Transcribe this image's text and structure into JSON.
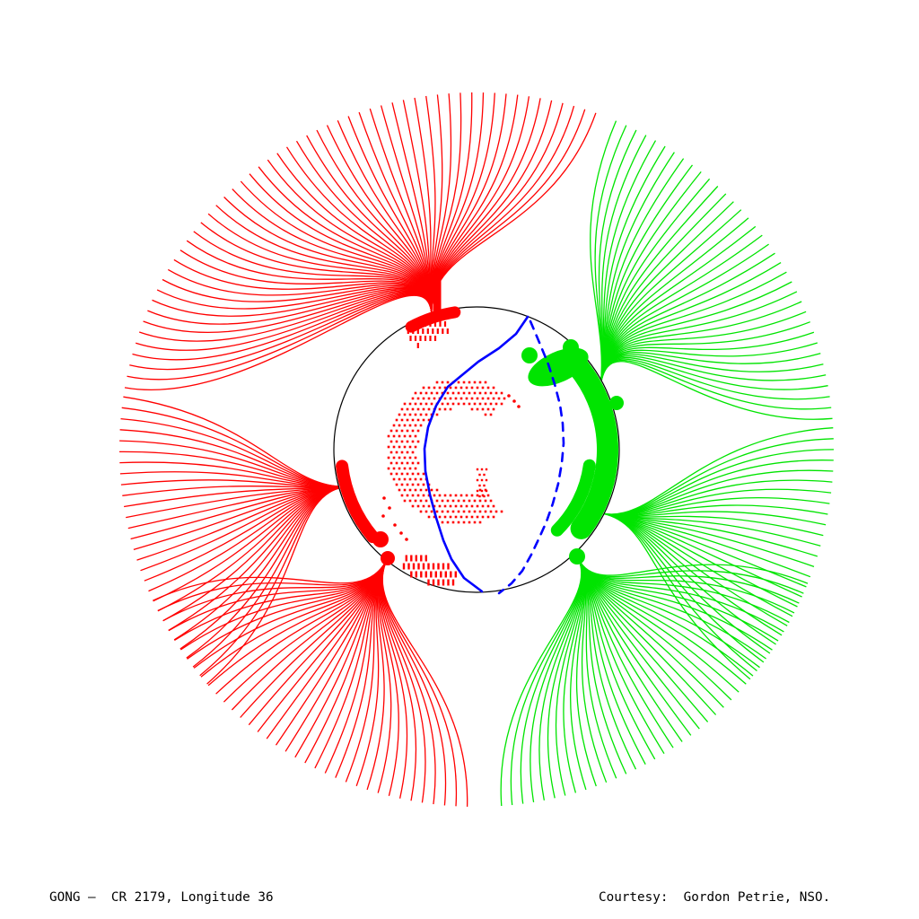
{
  "footer": {
    "left": "GONG —  CR 2179, Longitude 36",
    "right": "Courtesy:  Gordon Petrie, NSO."
  },
  "colors": {
    "background": "#ffffff",
    "negative": "#ff0000",
    "positive": "#00e400",
    "neutral": "#0000ff",
    "disk_outline": "#000000",
    "text": "#000000"
  },
  "chart_data": {
    "type": "field-line-plot",
    "title": "GONG —  CR 2179, Longitude 36",
    "credit": "Courtesy:  Gordon Petrie, NSO.",
    "legend": "grid off, no axes; red = negative-polarity open field lines, green = positive-polarity open field lines, blue = polarity-inversion (neutral) line, solid on near side and dashed on far side",
    "disk": {
      "cx": 531,
      "cy": 501,
      "r": 159
    },
    "source_surface_r": 398,
    "curve_c2_frac": 0.62,
    "line_width": 1.3,
    "series": [
      {
        "name": "negative polarity field lines",
        "color_key": "negative",
        "bundles": [
          "negative-top",
          "negative-left",
          "negative-bottom"
        ]
      },
      {
        "name": "positive polarity field lines",
        "color_key": "positive",
        "bundles": [
          "positive-top",
          "positive-mid",
          "positive-bottom"
        ]
      }
    ],
    "bundles": [
      {
        "id": "negative-top",
        "polarity": "negative",
        "foot": [
          481,
          351
        ],
        "dir_deg": 93,
        "c1_len": 85,
        "end_a0": 70.5,
        "end_a1": 170,
        "count": 55
      },
      {
        "id": "negative-left",
        "polarity": "negative",
        "foot": [
          389,
          542
        ],
        "dir_deg": 184,
        "c1_len": 70,
        "end_a0": 171.5,
        "end_a1": 221,
        "count": 29
      },
      {
        "id": "negative-bottom",
        "polarity": "negative",
        "foot": [
          432,
          622
        ],
        "dir_deg": 243,
        "c1_len": 75,
        "end_a0": 205,
        "end_a1": 268.5,
        "count": 36
      },
      {
        "id": "positive-top",
        "polarity": "positive",
        "foot": [
          669,
          431
        ],
        "dir_deg": 83,
        "c1_len": 85,
        "end_a0": 5,
        "end_a1": 67,
        "count": 36
      },
      {
        "id": "positive-mid",
        "polarity": "positive",
        "foot": [
          671,
          572
        ],
        "dir_deg": -12,
        "c1_len": 60,
        "end_a0": -40,
        "end_a1": 3.5,
        "count": 26
      },
      {
        "id": "positive-bottom",
        "polarity": "positive",
        "foot": [
          644,
          622
        ],
        "dir_deg": -63,
        "c1_len": 60,
        "end_a0": -86,
        "end_a1": -22,
        "count": 38
      }
    ],
    "neutral_line_front": {
      "style": "solid",
      "width": 2.6,
      "points": [
        [
          588,
          353
        ],
        [
          575,
          372
        ],
        [
          556,
          388
        ],
        [
          533,
          403
        ],
        [
          516,
          417
        ],
        [
          499,
          431
        ],
        [
          486,
          452
        ],
        [
          477,
          476
        ],
        [
          473,
          500
        ],
        [
          474,
          525
        ],
        [
          479,
          551
        ],
        [
          486,
          577
        ],
        [
          494,
          602
        ],
        [
          503,
          623
        ],
        [
          517,
          644
        ],
        [
          537,
          659
        ]
      ]
    },
    "neutral_line_far": {
      "style": "dashed",
      "width": 2.6,
      "dash": "9 8",
      "points": [
        [
          591,
          358
        ],
        [
          602,
          384
        ],
        [
          611,
          406
        ],
        [
          618,
          428
        ],
        [
          624,
          451
        ],
        [
          627,
          472
        ],
        [
          628,
          494
        ],
        [
          626,
          516
        ],
        [
          622,
          539
        ],
        [
          616,
          561
        ],
        [
          609,
          581
        ],
        [
          601,
          599
        ],
        [
          592,
          618
        ],
        [
          582,
          636
        ],
        [
          570,
          650
        ],
        [
          556,
          661
        ]
      ]
    },
    "negative_marks": [
      {
        "type": "arc",
        "r": 155,
        "a0": 99,
        "a1": 118,
        "w": 13
      },
      {
        "type": "line",
        "x1": 487,
        "y1": 349,
        "x2": 487,
        "y2": 303,
        "w": 9
      },
      {
        "type": "arc",
        "r": 151,
        "a0": 187,
        "a1": 220,
        "w": 14
      },
      {
        "type": "dot",
        "cx": 424,
        "cy": 601,
        "r": 9
      },
      {
        "type": "dot",
        "cx": 432,
        "cy": 622,
        "r": 8
      }
    ],
    "positive_region": [
      {
        "type": "arc",
        "r": 146,
        "a0": -37,
        "a1": 42,
        "w": 24
      },
      {
        "type": "ellipse",
        "cx": 622,
        "cy": 409,
        "rx": 36,
        "ry": 17,
        "rot": -24
      },
      {
        "type": "dot",
        "cx": 590,
        "cy": 396,
        "r": 9
      },
      {
        "type": "dot",
        "cx": 636,
        "cy": 387,
        "r": 9
      },
      {
        "type": "arc",
        "r": 127,
        "a0": -45,
        "a1": -8,
        "w": 14
      },
      {
        "type": "dot",
        "cx": 643,
        "cy": 620,
        "r": 9
      },
      {
        "type": "dot",
        "cx": 687,
        "cy": 449,
        "r": 8
      }
    ],
    "stipple_regions": [
      {
        "type": "annulus",
        "cx": 513,
        "cy": 503,
        "r0": 48,
        "r1": 83,
        "a0": 48,
        "a1": 305,
        "dw": 2.6,
        "dh": 2.6,
        "sx": 6,
        "sy": 6
      },
      {
        "type": "annulus",
        "cx": 531,
        "cy": 501,
        "r0": 132,
        "r1": 156,
        "a0": 103,
        "a1": 121,
        "dw": 2.2,
        "dh": 6,
        "sx": 5.5,
        "sy": 8
      },
      {
        "type": "annulus",
        "cx": 531,
        "cy": 501,
        "r0": 133,
        "r1": 158,
        "a0": 237,
        "a1": 262,
        "dw": 2.4,
        "dh": 7,
        "sx": 5.5,
        "sy": 9
      },
      {
        "type": "rect",
        "x": 532,
        "y": 523,
        "w": 11,
        "h": 32,
        "dw": 2.4,
        "dh": 2.4,
        "sx": 5,
        "sy": 6
      }
    ],
    "scatter_dots": [
      [
        428,
        555
      ],
      [
        434,
        566
      ],
      [
        427,
        575
      ],
      [
        440,
        585
      ],
      [
        447,
        594
      ],
      [
        453,
        601
      ],
      [
        567,
        441
      ],
      [
        573,
        447
      ],
      [
        578,
        453
      ]
    ]
  }
}
